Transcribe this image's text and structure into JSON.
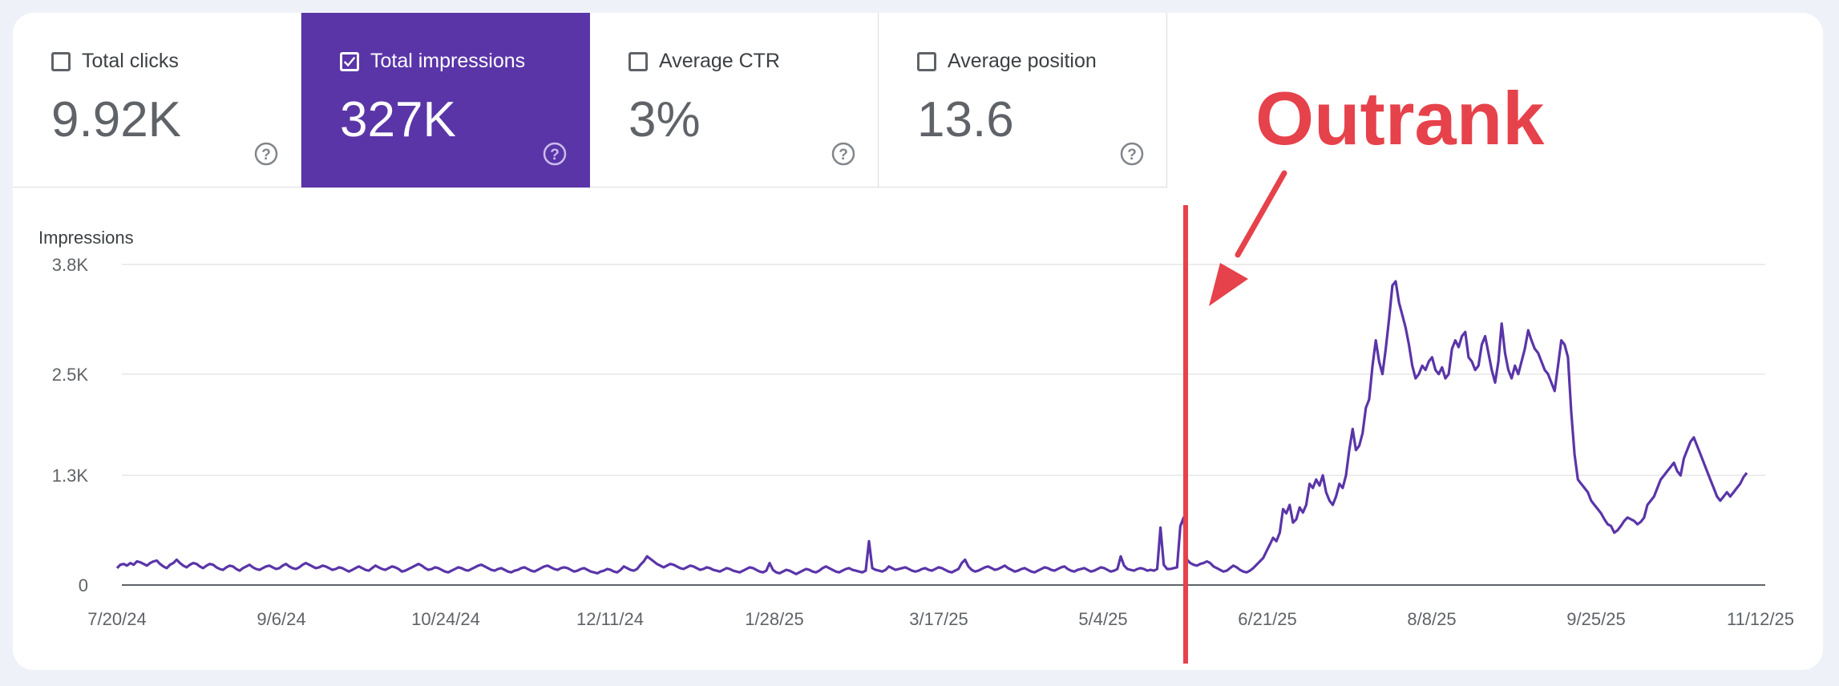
{
  "tiles": [
    {
      "label": "Total clicks",
      "value": "9.92K",
      "checked": false
    },
    {
      "label": "Total impressions",
      "value": "327K",
      "checked": true
    },
    {
      "label": "Average CTR",
      "value": "3%",
      "checked": false
    },
    {
      "label": "Average position",
      "value": "13.6",
      "checked": false
    }
  ],
  "annotation": {
    "text": "Outrank",
    "marker_date": "6/8/25"
  },
  "colors": {
    "selected": "#5a35a8",
    "line": "#5a35a8",
    "annotation": "#e6424b"
  },
  "chart_data": {
    "type": "line",
    "title": "",
    "ylabel": "Impressions",
    "xlabel": "",
    "ylim": [
      0,
      3800
    ],
    "yticks": [
      0,
      1300,
      2500,
      3800
    ],
    "ytick_labels": [
      "0",
      "1.3K",
      "2.5K",
      "3.8K"
    ],
    "xtick_labels": [
      "7/20/24",
      "9/6/24",
      "10/24/24",
      "12/11/24",
      "1/28/25",
      "3/17/25",
      "5/4/25",
      "6/21/25",
      "8/8/25",
      "9/25/25",
      "11/12/25"
    ],
    "x_start": "7/20/24",
    "x_end": "11/12/25",
    "legend": "none",
    "grid": true,
    "series": [
      {
        "name": "Impressions",
        "values": [
          200,
          240,
          250,
          230,
          260,
          240,
          280,
          270,
          250,
          230,
          260,
          280,
          290,
          250,
          220,
          200,
          240,
          260,
          300,
          260,
          230,
          210,
          240,
          260,
          250,
          220,
          200,
          230,
          250,
          240,
          210,
          190,
          180,
          210,
          230,
          220,
          190,
          170,
          200,
          220,
          240,
          210,
          190,
          180,
          200,
          220,
          230,
          210,
          190,
          200,
          230,
          250,
          220,
          200,
          190,
          210,
          240,
          260,
          240,
          220,
          200,
          210,
          230,
          220,
          200,
          180,
          190,
          210,
          200,
          180,
          160,
          180,
          200,
          220,
          200,
          180,
          170,
          200,
          230,
          210,
          190,
          180,
          200,
          220,
          210,
          190,
          160,
          170,
          190,
          210,
          230,
          250,
          230,
          200,
          180,
          190,
          210,
          200,
          180,
          160,
          150,
          170,
          190,
          210,
          200,
          180,
          170,
          190,
          210,
          230,
          240,
          220,
          200,
          180,
          170,
          190,
          200,
          180,
          160,
          150,
          170,
          180,
          200,
          210,
          190,
          170,
          160,
          180,
          200,
          220,
          230,
          210,
          190,
          180,
          200,
          210,
          200,
          180,
          160,
          170,
          190,
          200,
          180,
          160,
          150,
          140,
          160,
          170,
          190,
          180,
          160,
          150,
          180,
          220,
          200,
          180,
          170,
          190,
          240,
          280,
          340,
          310,
          280,
          250,
          230,
          210,
          230,
          250,
          240,
          220,
          200,
          190,
          210,
          230,
          220,
          200,
          180,
          190,
          210,
          200,
          180,
          170,
          160,
          180,
          200,
          190,
          170,
          160,
          150,
          170,
          190,
          210,
          200,
          180,
          160,
          150,
          170,
          260,
          180,
          150,
          140,
          160,
          180,
          170,
          150,
          130,
          150,
          170,
          190,
          180,
          160,
          150,
          170,
          200,
          220,
          200,
          180,
          160,
          150,
          170,
          190,
          200,
          180,
          170,
          160,
          150,
          170,
          520,
          200,
          180,
          170,
          160,
          180,
          220,
          200,
          180,
          190,
          200,
          210,
          190,
          170,
          160,
          170,
          190,
          200,
          180,
          170,
          190,
          210,
          200,
          180,
          160,
          150,
          170,
          190,
          260,
          300,
          220,
          180,
          160,
          170,
          190,
          210,
          220,
          200,
          180,
          190,
          210,
          230,
          200,
          180,
          160,
          170,
          190,
          200,
          180,
          160,
          150,
          170,
          190,
          210,
          200,
          180,
          170,
          190,
          210,
          220,
          190,
          170,
          160,
          180,
          190,
          200,
          180,
          160,
          170,
          190,
          210,
          200,
          180,
          160,
          170,
          190,
          340,
          230,
          190,
          180,
          170,
          190,
          200,
          190,
          170,
          180,
          170,
          190,
          680,
          240,
          190,
          190,
          200,
          210,
          700,
          800,
          300,
          260,
          240,
          230,
          250,
          260,
          280,
          260,
          220,
          200,
          180,
          160,
          170,
          200,
          230,
          210,
          180,
          160,
          150,
          170,
          200,
          240,
          280,
          320,
          400,
          480,
          560,
          520,
          620,
          900,
          850,
          950,
          740,
          780,
          920,
          860,
          950,
          1200,
          1150,
          1250,
          1180,
          1300,
          1100,
          1000,
          950,
          1050,
          1200,
          1150,
          1300,
          1600,
          1850,
          1600,
          1650,
          1800,
          2100,
          2200,
          2600,
          2900,
          2650,
          2500,
          2800,
          3150,
          3550,
          3600,
          3350,
          3200,
          3050,
          2850,
          2600,
          2450,
          2500,
          2600,
          2550,
          2650,
          2700,
          2550,
          2500,
          2580,
          2450,
          2500,
          2800,
          2900,
          2820,
          2950,
          3000,
          2700,
          2650,
          2550,
          2600,
          2850,
          2950,
          2750,
          2550,
          2400,
          2650,
          3100,
          2750,
          2550,
          2450,
          2600,
          2500,
          2650,
          2800,
          3020,
          2900,
          2800,
          2750,
          2650,
          2550,
          2500,
          2400,
          2300,
          2600,
          2900,
          2850,
          2700,
          2050,
          1550,
          1250,
          1200,
          1150,
          1100,
          1000,
          950,
          900,
          850,
          780,
          720,
          700,
          620,
          650,
          700,
          760,
          800,
          780,
          760,
          720,
          750,
          800,
          950,
          1000,
          1050,
          1150,
          1250,
          1300,
          1350,
          1400,
          1450,
          1350,
          1300,
          1500,
          1600,
          1700,
          1750,
          1650,
          1550,
          1450,
          1350,
          1250,
          1150,
          1050,
          1000,
          1050,
          1100,
          1050,
          1100,
          1150,
          1200,
          1280,
          1330
        ]
      }
    ]
  }
}
